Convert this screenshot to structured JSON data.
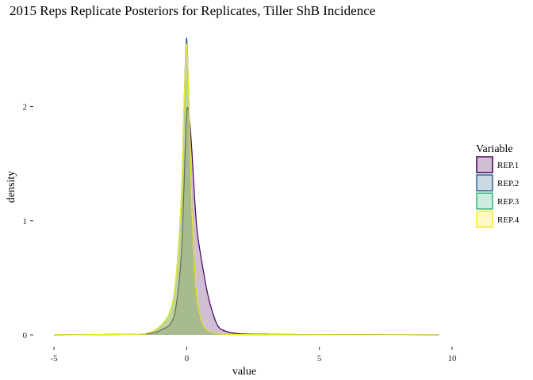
{
  "chart_data": {
    "type": "area",
    "title": "2015 Reps Replicate Posteriors for Replicates, Tiller ShB Incidence",
    "xlabel": "value",
    "ylabel": "density",
    "xlim": [
      -5,
      10
    ],
    "ylim": [
      0,
      2.6
    ],
    "x_ticks": [
      -5,
      0,
      5,
      10
    ],
    "y_ticks": [
      0,
      1,
      2
    ],
    "grid": false,
    "legend_position": "right",
    "legend_title": "Variable",
    "x": [
      -5,
      -2,
      -1.5,
      -1.2,
      -0.9,
      -0.6,
      -0.4,
      -0.2,
      -0.1,
      0,
      0.1,
      0.2,
      0.3,
      0.4,
      0.6,
      0.8,
      1.0,
      1.2,
      1.5,
      2,
      3,
      5,
      9.5
    ],
    "series": [
      {
        "name": "REP.1",
        "color": "#440154",
        "values": [
          0,
          0.005,
          0.01,
          0.02,
          0.05,
          0.1,
          0.25,
          0.7,
          1.3,
          1.95,
          1.9,
          1.6,
          1.2,
          0.9,
          0.6,
          0.35,
          0.18,
          0.07,
          0.03,
          0.01,
          0.005,
          0.002,
          0
        ]
      },
      {
        "name": "REP.2",
        "color": "#31688E",
        "values": [
          0,
          0.005,
          0.015,
          0.04,
          0.1,
          0.22,
          0.5,
          1.2,
          2.0,
          2.6,
          1.9,
          1.1,
          0.6,
          0.3,
          0.1,
          0.04,
          0.02,
          0.01,
          0.005,
          0.003,
          0.002,
          0.001,
          0
        ]
      },
      {
        "name": "REP.3",
        "color": "#35B779",
        "values": [
          0,
          0.005,
          0.015,
          0.04,
          0.1,
          0.22,
          0.5,
          1.15,
          1.95,
          2.55,
          1.85,
          1.1,
          0.6,
          0.3,
          0.1,
          0.04,
          0.02,
          0.01,
          0.005,
          0.003,
          0.002,
          0.001,
          0
        ]
      },
      {
        "name": "REP.4",
        "color": "#FDE725",
        "values": [
          0,
          0.005,
          0.015,
          0.04,
          0.1,
          0.22,
          0.5,
          1.2,
          2.0,
          2.55,
          1.9,
          1.1,
          0.6,
          0.3,
          0.1,
          0.04,
          0.02,
          0.01,
          0.005,
          0.003,
          0.002,
          0.001,
          0
        ]
      }
    ]
  }
}
